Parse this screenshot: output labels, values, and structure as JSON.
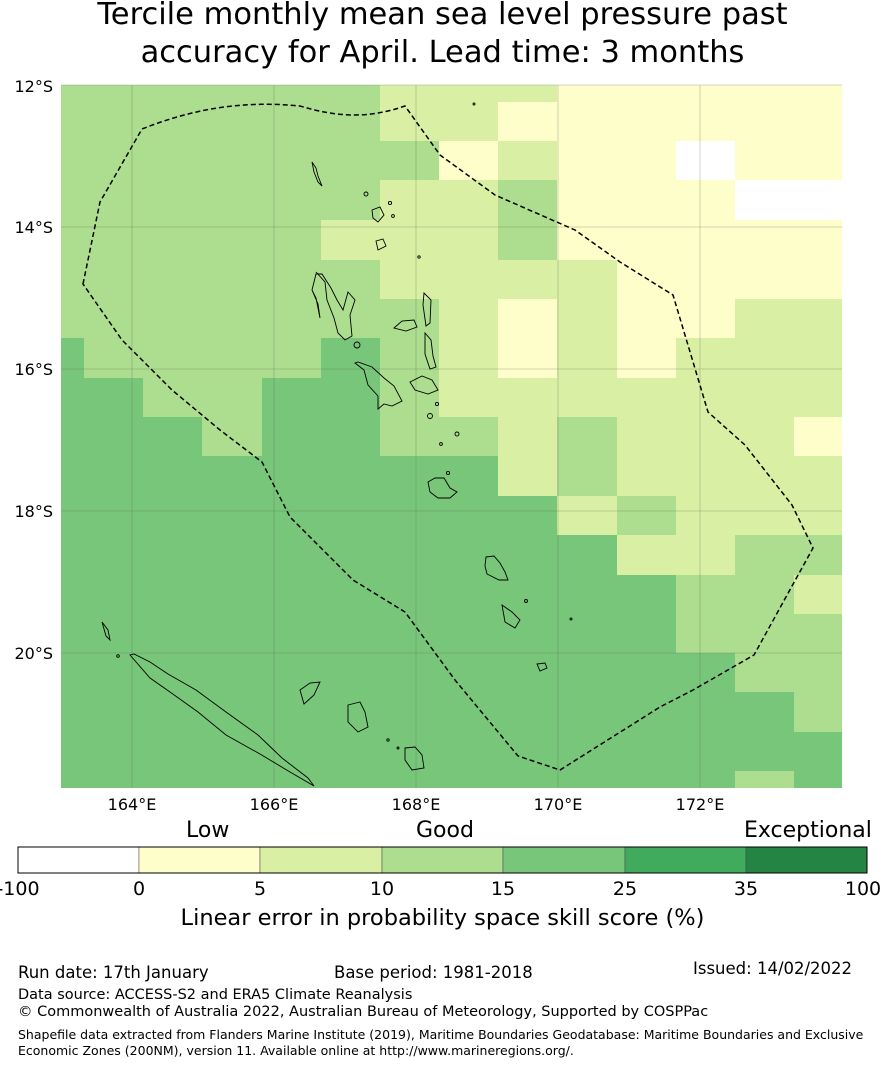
{
  "title_line1": "Tercile monthly mean sea level pressure past",
  "title_line2": "accuracy for April. Lead time: 3 months",
  "map": {
    "lat_labels": [
      "12°S",
      "14°S",
      "16°S",
      "18°S",
      "20°S"
    ],
    "lon_labels": [
      "164°E",
      "166°E",
      "168°E",
      "170°E",
      "172°E"
    ]
  },
  "colorbar": {
    "category_labels": [
      "Low",
      "Good",
      "Exceptional"
    ],
    "tick_labels": [
      "-100",
      "0",
      "5",
      "10",
      "15",
      "25",
      "35",
      "100"
    ],
    "colors": [
      "#ffffff",
      "#fefecb",
      "#d9efa3",
      "#addd8e",
      "#78c679",
      "#41ab5d",
      "#238443"
    ],
    "title": "Linear error in probability space skill score (%)"
  },
  "footer": {
    "run_date": "Run date: 17th January",
    "base_period": "Base period: 1981-2018",
    "issued": "Issued: 14/02/2022",
    "data_source": "Data source: ACCESS-S2 and ERA5 Climate Reanalysis",
    "copyright": "© Commonwealth of Australia 2022, Australian Bureau of Meteorology, Supported by COSPPac",
    "shapefile_line1": "Shapefile data extracted from Flanders Marine Institute (2019), Maritime Boundaries Geodatabase: Maritime Boundaries and Exclusive",
    "shapefile_line2": "Economic Zones (200NM), version 11. Available online at http://www.marineregions.org/."
  }
}
